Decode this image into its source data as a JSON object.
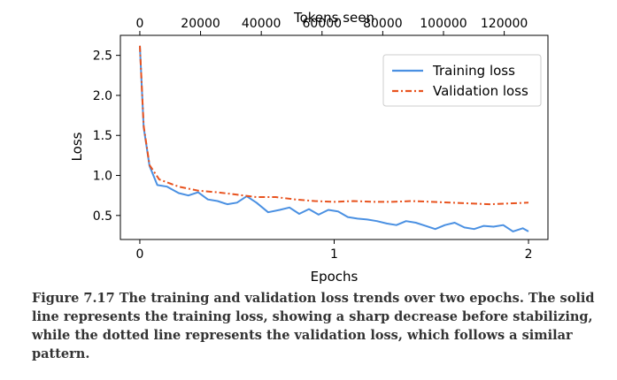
{
  "chart_data": {
    "type": "line",
    "top_axis_label": "Tokens seen",
    "top_tick_labels": [
      "0",
      "20000",
      "40000",
      "60000",
      "80000",
      "100000",
      "120000"
    ],
    "top_tick_values": [
      0,
      20000,
      40000,
      60000,
      80000,
      100000,
      120000
    ],
    "top_xlim": [
      0,
      128000
    ],
    "xlabel": "Epochs",
    "ylabel": "Loss",
    "xlim": [
      -0.1,
      2.1
    ],
    "ylim": [
      0.2,
      2.75
    ],
    "x_ticks": [
      0,
      1,
      2
    ],
    "x_tick_labels": [
      "0",
      "1",
      "2"
    ],
    "y_ticks": [
      0.5,
      1.0,
      1.5,
      2.0,
      2.5
    ],
    "y_tick_labels": [
      "0.5",
      "1.0",
      "1.5",
      "2.0",
      "2.5"
    ],
    "grid": false,
    "legend_position": "top-right",
    "series": [
      {
        "name": "Training loss",
        "color": "#4a90e2",
        "style": "solid",
        "x": [
          0,
          0.02,
          0.05,
          0.09,
          0.14,
          0.2,
          0.25,
          0.3,
          0.35,
          0.4,
          0.45,
          0.5,
          0.55,
          0.6,
          0.66,
          0.72,
          0.77,
          0.82,
          0.87,
          0.92,
          0.97,
          1.02,
          1.07,
          1.12,
          1.17,
          1.22,
          1.27,
          1.32,
          1.37,
          1.42,
          1.47,
          1.52,
          1.57,
          1.62,
          1.67,
          1.72,
          1.77,
          1.82,
          1.87,
          1.92,
          1.97,
          2.0
        ],
        "y": [
          2.62,
          1.6,
          1.12,
          0.88,
          0.86,
          0.78,
          0.75,
          0.79,
          0.7,
          0.68,
          0.64,
          0.66,
          0.74,
          0.66,
          0.54,
          0.57,
          0.6,
          0.52,
          0.58,
          0.51,
          0.57,
          0.55,
          0.48,
          0.46,
          0.45,
          0.43,
          0.4,
          0.38,
          0.43,
          0.41,
          0.37,
          0.33,
          0.38,
          0.41,
          0.35,
          0.33,
          0.37,
          0.36,
          0.38,
          0.3,
          0.34,
          0.3
        ]
      },
      {
        "name": "Validation loss",
        "color": "#e8531f",
        "style": "dashdot",
        "x": [
          0,
          0.02,
          0.05,
          0.1,
          0.2,
          0.3,
          0.4,
          0.5,
          0.6,
          0.7,
          0.8,
          0.9,
          1.0,
          1.1,
          1.2,
          1.3,
          1.4,
          1.5,
          1.6,
          1.7,
          1.8,
          1.9,
          2.0
        ],
        "y": [
          2.62,
          1.62,
          1.13,
          0.95,
          0.86,
          0.81,
          0.79,
          0.76,
          0.73,
          0.73,
          0.7,
          0.68,
          0.67,
          0.68,
          0.67,
          0.67,
          0.68,
          0.67,
          0.66,
          0.65,
          0.64,
          0.65,
          0.66
        ]
      }
    ]
  },
  "caption": {
    "line1": "Figure 7.17 The training and validation loss trends over two epochs. The solid",
    "line2": "line represents the training loss, showing a sharp decrease before stabilizing,",
    "line3": "while the dotted line represents the validation loss, which follows a similar",
    "line4": "pattern."
  }
}
